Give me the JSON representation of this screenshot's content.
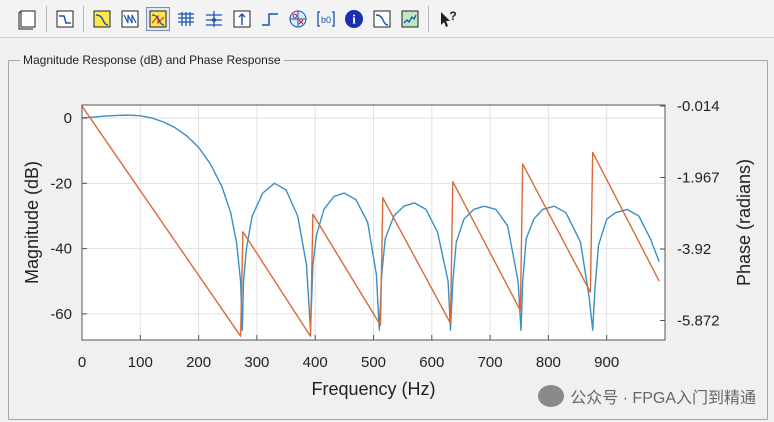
{
  "toolbar": {
    "icons": [
      "new-figure-icon",
      "filter-spec-icon",
      "magnitude-icon",
      "phase-icon",
      "mag-phase-icon",
      "group-delay-icon",
      "phase-delay-icon",
      "impulse-icon",
      "step-icon",
      "pole-zero-icon",
      "coefficients-icon",
      "info-icon",
      "magnitude-estimate-icon",
      "noise-icon",
      "whats-this-icon"
    ]
  },
  "panel": {
    "title": "Magnitude Response (dB) and Phase Response"
  },
  "colors": {
    "magnitude": "#3a8fc4",
    "phase": "#d86a3a"
  },
  "chart_data": {
    "type": "line",
    "xlabel": "Frequency (Hz)",
    "ylabel": "Magnitude (dB)",
    "ylabel2": "Phase (radians)",
    "xlim": [
      0,
      1000
    ],
    "ylim": [
      -68,
      4
    ],
    "ylim2": [
      -6.405,
      0.0147
    ],
    "xticks": [
      0,
      100,
      200,
      300,
      400,
      500,
      600,
      700,
      800,
      900
    ],
    "yticks": [
      0,
      -20,
      -40,
      -60
    ],
    "yticks2": [
      "-0.014",
      "-1.967",
      "-3.92",
      "-5.872"
    ],
    "grid": true,
    "series": [
      {
        "role": "magnitude",
        "x": [
          0,
          20,
          40,
          60,
          80,
          100,
          120,
          140,
          160,
          180,
          200,
          220,
          240,
          255,
          265,
          272,
          275,
          277,
          282,
          292,
          310,
          330,
          350,
          370,
          385,
          392,
          396,
          402,
          415,
          432,
          450,
          470,
          490,
          505,
          510,
          514,
          520,
          535,
          552,
          570,
          590,
          610,
          628,
          632,
          636,
          642,
          655,
          672,
          690,
          710,
          730,
          748,
          753,
          756,
          762,
          775,
          790,
          810,
          830,
          855,
          870,
          876,
          880,
          886,
          900,
          915,
          935,
          955,
          975,
          990
        ],
        "y": [
          0,
          0.3,
          0.6,
          0.8,
          0.9,
          0.7,
          0,
          -1.2,
          -3,
          -5.5,
          -9,
          -14,
          -21,
          -29,
          -38,
          -50,
          -65,
          -50,
          -40,
          -30,
          -23,
          -20,
          -22,
          -30,
          -45,
          -65,
          -45,
          -36,
          -28,
          -24,
          -23,
          -25,
          -32,
          -48,
          -65,
          -48,
          -37,
          -30,
          -27,
          -26,
          -28,
          -35,
          -50,
          -65,
          -50,
          -38,
          -31,
          -28,
          -27,
          -28,
          -33,
          -50,
          -65,
          -50,
          -37,
          -31,
          -28,
          -27,
          -29,
          -38,
          -55,
          -65,
          -52,
          -39,
          -31,
          -29,
          -28,
          -30,
          -37,
          -44
        ]
      },
      {
        "role": "phase",
        "x": [
          0,
          272,
          276,
          392,
          396,
          512,
          516,
          632,
          636,
          752,
          756,
          872,
          876,
          990
        ],
        "y": [
          -0.014,
          -6.3,
          -3.45,
          -6.3,
          -2.97,
          -6.0,
          -2.52,
          -5.95,
          -2.08,
          -5.6,
          -1.6,
          -5.1,
          -1.28,
          -4.8
        ]
      }
    ]
  },
  "watermark": {
    "text": "公众号 · FPGA入门到精通"
  }
}
